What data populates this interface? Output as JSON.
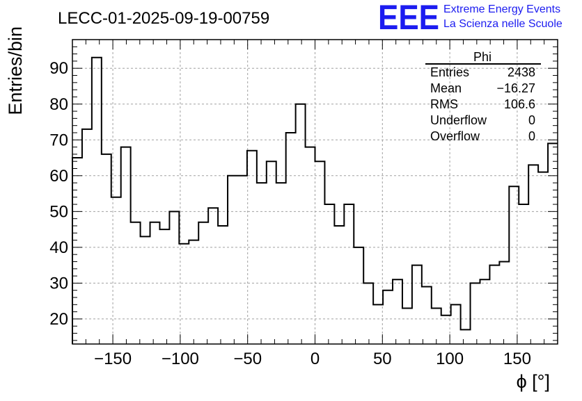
{
  "header": {
    "title": "LECC-01-2025-09-19-00759",
    "logo_text": "EEE",
    "logo_line1": "Extreme Energy Events",
    "logo_line2": "La Scienza nelle Scuole",
    "logo_color": "#1c1cf0"
  },
  "stats": {
    "name": "Phi",
    "rows": [
      {
        "label": "Entries",
        "value": "2438"
      },
      {
        "label": "Mean",
        "value": "−16.27"
      },
      {
        "label": "RMS",
        "value": "106.6"
      },
      {
        "label": "Underflow",
        "value": "0"
      },
      {
        "label": "Overflow",
        "value": "0"
      }
    ]
  },
  "chart_data": {
    "type": "bar",
    "style": "step-histogram",
    "title": "LECC-01-2025-09-19-00759",
    "xlabel": "ϕ [°]",
    "ylabel": "Entries/bin",
    "xlim": [
      -180,
      180
    ],
    "ylim": [
      13,
      98
    ],
    "bin_width": 7.2,
    "x_ticks": [
      -150,
      -100,
      -50,
      0,
      50,
      100,
      150
    ],
    "x_tick_labels": [
      "−150",
      "−100",
      "−50",
      "0",
      "50",
      "100",
      "150"
    ],
    "y_ticks": [
      20,
      30,
      40,
      50,
      60,
      70,
      80,
      90
    ],
    "y_tick_labels": [
      "20",
      "30",
      "40",
      "50",
      "60",
      "70",
      "80",
      "90"
    ],
    "grid": true,
    "line_color": "#000000",
    "values": [
      65,
      73,
      93,
      66,
      54,
      68,
      47,
      43,
      47,
      45,
      50,
      41,
      42,
      47,
      51,
      46,
      60,
      60,
      67,
      58,
      64,
      58,
      72,
      80,
      68,
      64,
      52,
      46,
      52,
      40,
      30,
      24,
      28,
      31,
      23,
      35,
      29,
      23,
      21,
      24,
      17,
      30,
      31,
      35,
      36,
      57,
      52,
      63,
      61,
      69
    ]
  }
}
